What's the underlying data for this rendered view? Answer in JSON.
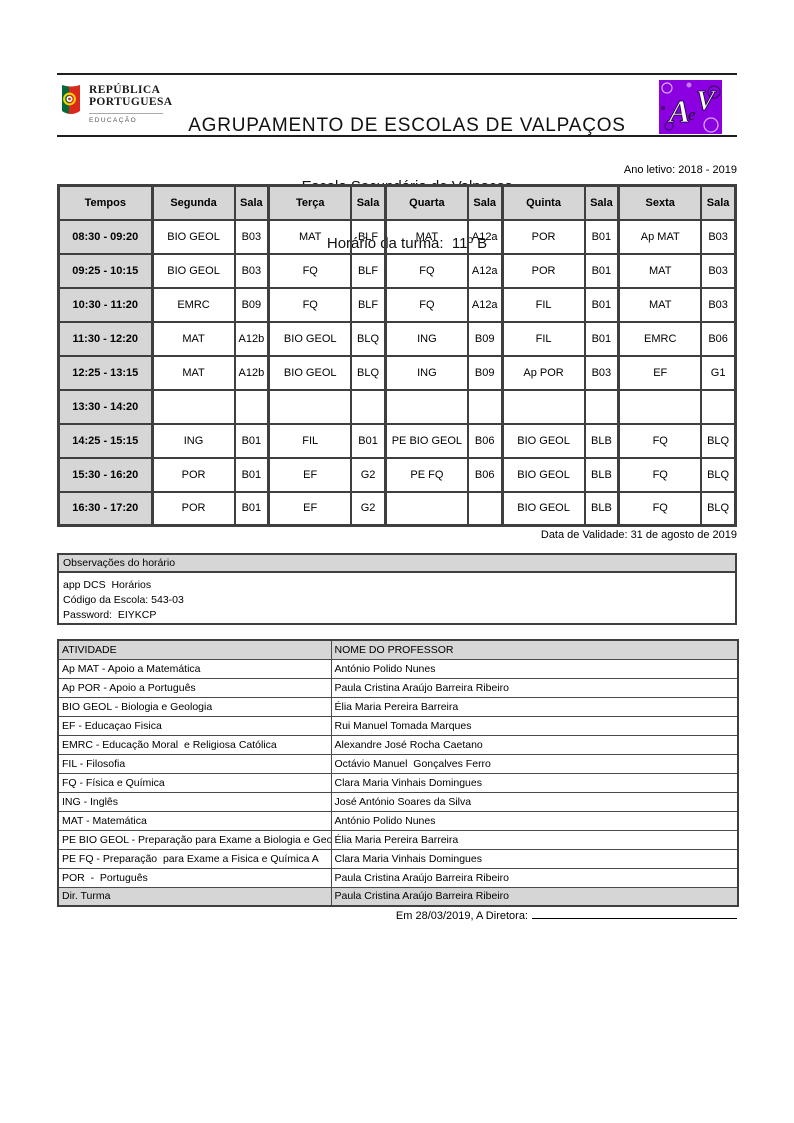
{
  "header": {
    "gov_logo": {
      "line1": "REPÚBLICA",
      "line2": "PORTUGUESA",
      "sub": "EDUCAÇÃO"
    },
    "school_group": "AGRUPAMENTO DE ESCOLAS DE VALPAÇOS",
    "school": "Escola Secundária de Valpaços",
    "class_title": "Horário da turma:  11º B",
    "aev_logo_text": "AeV"
  },
  "year_label": "Ano letivo: 2018 - 2019",
  "timetable": {
    "columns": [
      "Tempos",
      "Segunda",
      "Sala",
      "Terça",
      "Sala",
      "Quarta",
      "Sala",
      "Quinta",
      "Sala",
      "Sexta",
      "Sala"
    ],
    "rows": [
      {
        "time": "08:30 - 09:20",
        "cells": [
          "BIO GEOL",
          "B03",
          "MAT",
          "BLF",
          "MAT",
          "A12a",
          "POR",
          "B01",
          "Ap MAT",
          "B03"
        ]
      },
      {
        "time": "09:25 - 10:15",
        "cells": [
          "BIO GEOL",
          "B03",
          "FQ",
          "BLF",
          "FQ",
          "A12a",
          "POR",
          "B01",
          "MAT",
          "B03"
        ]
      },
      {
        "time": "10:30 - 11:20",
        "cells": [
          "EMRC",
          "B09",
          "FQ",
          "BLF",
          "FQ",
          "A12a",
          "FIL",
          "B01",
          "MAT",
          "B03"
        ]
      },
      {
        "time": "11:30 - 12:20",
        "cells": [
          "MAT",
          "A12b",
          "BIO GEOL",
          "BLQ",
          "ING",
          "B09",
          "FIL",
          "B01",
          "EMRC",
          "B06"
        ]
      },
      {
        "time": "12:25 - 13:15",
        "cells": [
          "MAT",
          "A12b",
          "BIO GEOL",
          "BLQ",
          "ING",
          "B09",
          "Ap POR",
          "B03",
          "EF",
          "G1"
        ]
      },
      {
        "time": "13:30 - 14:20",
        "cells": [
          "",
          "",
          "",
          "",
          "",
          "",
          "",
          "",
          "",
          ""
        ]
      },
      {
        "time": "14:25 - 15:15",
        "cells": [
          "ING",
          "B01",
          "FIL",
          "B01",
          "PE BIO GEOL",
          "B06",
          "BIO GEOL",
          "BLB",
          "FQ",
          "BLQ"
        ]
      },
      {
        "time": "15:30 - 16:20",
        "cells": [
          "POR",
          "B01",
          "EF",
          "G2",
          "PE FQ",
          "B06",
          "BIO GEOL",
          "BLB",
          "FQ",
          "BLQ"
        ]
      },
      {
        "time": "16:30 - 17:20",
        "cells": [
          "POR",
          "B01",
          "EF",
          "G2",
          "",
          "",
          "BIO GEOL",
          "BLB",
          "FQ",
          "BLQ"
        ]
      }
    ]
  },
  "validity_label": "Data de Validade: 31 de agosto de 2019",
  "observations": {
    "title": "Observações do horário",
    "lines": [
      "app DCS  Horários",
      "Código da Escola: 543-03",
      "Password:  EIYKCP"
    ]
  },
  "activities": {
    "columns": [
      "ATIVIDADE",
      "NOME DO PROFESSOR"
    ],
    "rows": [
      {
        "activity": "Ap MAT - Apoio a Matemática",
        "teacher": "António Polido Nunes",
        "shaded": false
      },
      {
        "activity": "Ap POR - Apoio a Português",
        "teacher": "Paula Cristina Araújo Barreira Ribeiro",
        "shaded": false
      },
      {
        "activity": "BIO GEOL - Biologia e Geologia",
        "teacher": "Élia Maria Pereira Barreira",
        "shaded": false
      },
      {
        "activity": "EF - Educaçao Fisica",
        "teacher": "Rui Manuel Tomada Marques",
        "shaded": false
      },
      {
        "activity": "EMRC - Educação Moral  e Religiosa Católica",
        "teacher": "Alexandre José Rocha Caetano",
        "shaded": false
      },
      {
        "activity": "FIL - Filosofia",
        "teacher": "Octávio Manuel  Gonçalves Ferro",
        "shaded": false
      },
      {
        "activity": "FQ - Física e Química",
        "teacher": "Clara Maria Vinhais Domingues",
        "shaded": false
      },
      {
        "activity": "ING - Inglês",
        "teacher": "José António Soares da Silva",
        "shaded": false
      },
      {
        "activity": "MAT - Matemática",
        "teacher": "António Polido Nunes",
        "shaded": false
      },
      {
        "activity": "PE BIO GEOL - Preparação para Exame a Biologia e Geologia",
        "teacher": "Élia Maria Pereira Barreira",
        "shaded": false
      },
      {
        "activity": "PE FQ - Preparação  para Exame a Fisica e Química A",
        "teacher": "Clara Maria Vinhais Domingues",
        "shaded": false
      },
      {
        "activity": "POR  -  Português",
        "teacher": "Paula Cristina Araújo Barreira Ribeiro",
        "shaded": false
      },
      {
        "activity": "Dir. Turma",
        "teacher": "Paula Cristina Araújo Barreira Ribeiro",
        "shaded": true
      }
    ]
  },
  "signature": {
    "label": "Em 28/03/2019, A Diretora:"
  },
  "colors": {
    "accent_purple": "#8a00e0",
    "table_gray": "#d6d6d6",
    "border_dark": "#3f3f3f"
  }
}
